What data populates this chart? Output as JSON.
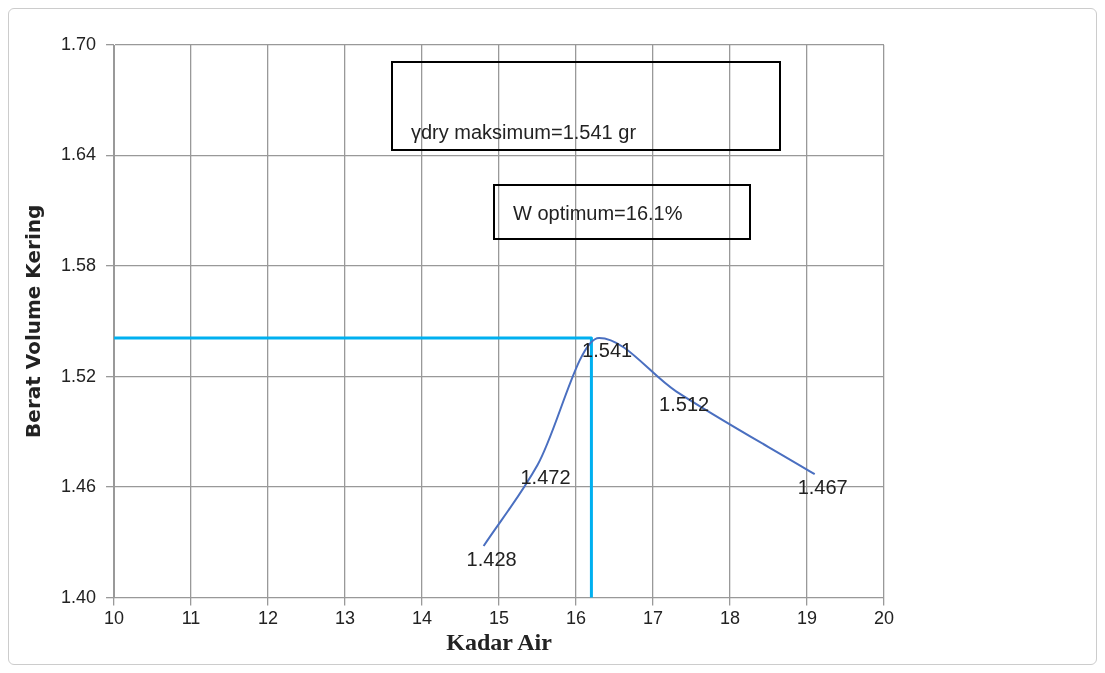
{
  "chart_data": {
    "type": "line",
    "xlabel": "Kadar Air",
    "ylabel": "Berat Volume Kering",
    "xlim": [
      10,
      20
    ],
    "xticks": [
      10,
      11,
      12,
      13,
      14,
      15,
      16,
      17,
      18,
      19,
      20
    ],
    "ylim": [
      1.4,
      1.7
    ],
    "yticks": [
      {
        "value": 1.4,
        "label": "1.40"
      },
      {
        "value": 1.46,
        "label": "1.46"
      },
      {
        "value": 1.52,
        "label": "1.52"
      },
      {
        "value": 1.58,
        "label": "1.58"
      },
      {
        "value": 1.64,
        "label": "1.64"
      },
      {
        "value": 1.7,
        "label": "1.70"
      }
    ],
    "series": [
      {
        "color": "#4a6fc0",
        "x": [
          14.8,
          15.5,
          16.3,
          17.3,
          19.1
        ],
        "values": [
          1.428,
          1.472,
          1.541,
          1.512,
          1.467
        ],
        "value_labels": [
          "1.428",
          "1.472",
          "1.541",
          "1.512",
          "1.467"
        ]
      },
      {
        "type": "line",
        "color": "#00b0f0",
        "x": [
          10,
          16.2,
          16.2
        ],
        "values": [
          1.541,
          1.541,
          1.4
        ]
      }
    ],
    "grid": true,
    "legend": false,
    "marker": "none",
    "line_style": "solid",
    "annotations": [
      "γdry maksimum=1.541 gr",
      "W optimum=16.1%"
    ]
  }
}
